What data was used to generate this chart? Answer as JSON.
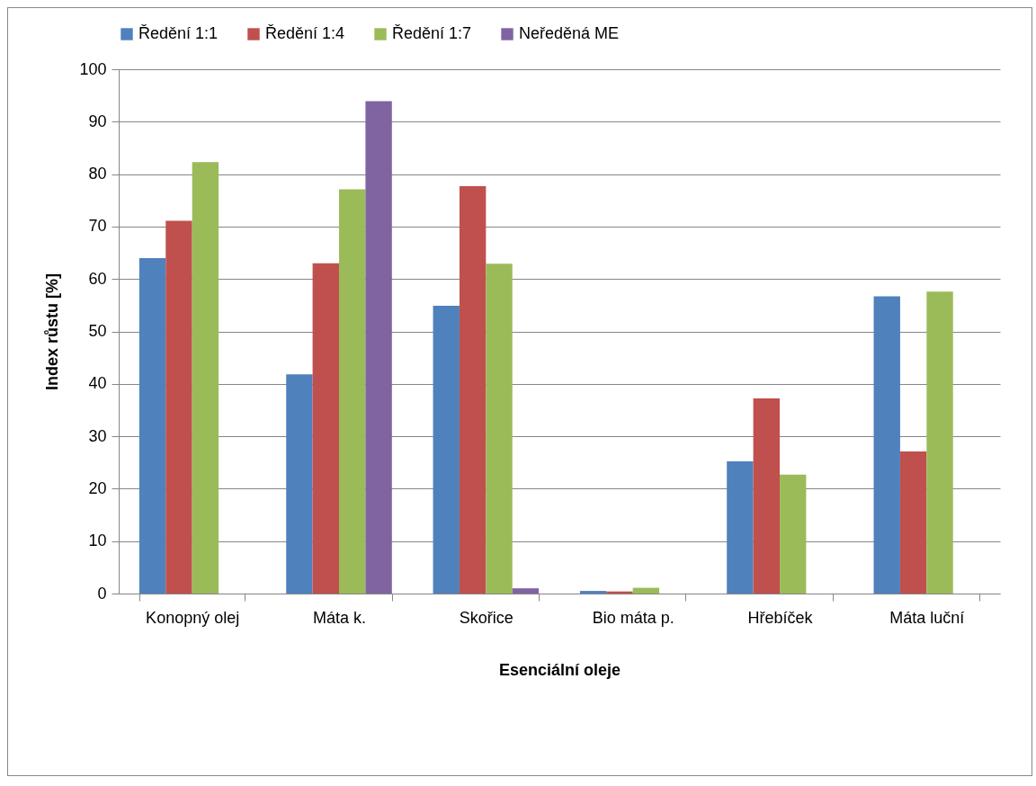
{
  "chart_data": {
    "type": "bar",
    "xlabel": "Esenciální oleje",
    "ylabel": "Index růstu [%]",
    "categories": [
      "Konopný olej",
      "Máta k.",
      "Skořice",
      "Bio máta p.",
      "Hřebíček",
      "Máta luční"
    ],
    "series": [
      {
        "name": "Ředění 1:1",
        "color": "#4f81bd",
        "values": [
          64.0,
          41.8,
          54.9,
          0.5,
          25.2,
          56.7
        ]
      },
      {
        "name": "Ředění 1:4",
        "color": "#c0504d",
        "values": [
          71.1,
          63.0,
          77.7,
          0.4,
          37.2,
          27.1
        ]
      },
      {
        "name": "Ředění 1:7",
        "color": "#9bbb59",
        "values": [
          82.3,
          77.1,
          62.9,
          1.1,
          22.7,
          57.6
        ]
      },
      {
        "name": "Neředěná ME",
        "color": "#8064a2",
        "values": [
          null,
          93.9,
          1.0,
          null,
          null,
          null
        ]
      }
    ],
    "ylim": [
      0,
      100
    ],
    "yticks": [
      0,
      10,
      20,
      30,
      40,
      50,
      60,
      70,
      80,
      90,
      100
    ],
    "grid": "y",
    "legend": "top"
  }
}
